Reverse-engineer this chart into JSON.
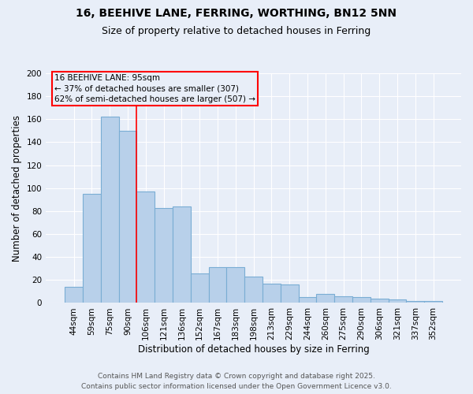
{
  "title_line1": "16, BEEHIVE LANE, FERRING, WORTHING, BN12 5NN",
  "title_line2": "Size of property relative to detached houses in Ferring",
  "xlabel": "Distribution of detached houses by size in Ferring",
  "ylabel": "Number of detached properties",
  "categories": [
    "44sqm",
    "59sqm",
    "75sqm",
    "90sqm",
    "106sqm",
    "121sqm",
    "136sqm",
    "152sqm",
    "167sqm",
    "183sqm",
    "198sqm",
    "213sqm",
    "229sqm",
    "244sqm",
    "260sqm",
    "275sqm",
    "290sqm",
    "306sqm",
    "321sqm",
    "337sqm",
    "352sqm"
  ],
  "values": [
    14,
    95,
    162,
    150,
    97,
    83,
    84,
    26,
    31,
    31,
    23,
    17,
    16,
    5,
    8,
    6,
    5,
    4,
    3,
    2,
    2
  ],
  "bar_color": "#b8d0ea",
  "bar_edge_color": "#7aadd4",
  "vline_index": 3.5,
  "vline_color": "red",
  "annotation_title": "16 BEEHIVE LANE: 95sqm",
  "annotation_line1": "← 37% of detached houses are smaller (307)",
  "annotation_line2": "62% of semi-detached houses are larger (507) →",
  "ylim": [
    0,
    200
  ],
  "yticks": [
    0,
    20,
    40,
    60,
    80,
    100,
    120,
    140,
    160,
    180,
    200
  ],
  "bg_color": "#e8eef8",
  "grid_color": "#d0d8e8",
  "footer_line1": "Contains HM Land Registry data © Crown copyright and database right 2025.",
  "footer_line2": "Contains public sector information licensed under the Open Government Licence v3.0.",
  "title_fontsize": 10,
  "subtitle_fontsize": 9,
  "axis_label_fontsize": 8.5,
  "tick_fontsize": 7.5,
  "annotation_fontsize": 7.5,
  "footer_fontsize": 6.5
}
